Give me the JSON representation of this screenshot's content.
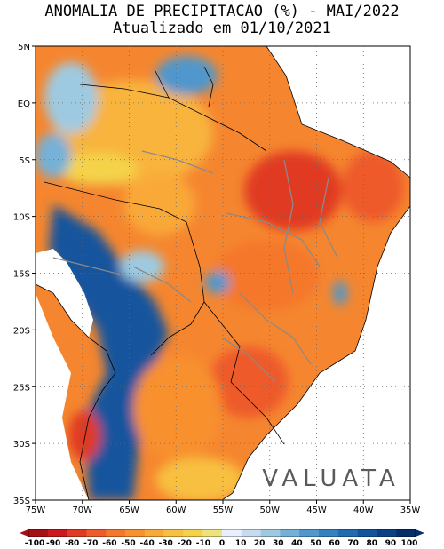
{
  "header": {
    "title": "ANOMALIA DE PRECIPITACAO (%) - MAI/2022",
    "subtitle": "Atualizado em 01/10/2021"
  },
  "map": {
    "lat_labels": [
      "5N",
      "EQ",
      "5S",
      "10S",
      "15S",
      "20S",
      "25S",
      "30S",
      "35S"
    ],
    "lon_labels": [
      "75W",
      "70W",
      "65W",
      "60W",
      "55W",
      "50W",
      "45W",
      "40W",
      "35W"
    ],
    "extent": {
      "lon": [
        -75,
        -35
      ],
      "lat": [
        -35,
        5
      ]
    }
  },
  "watermark": {
    "text": "VALUATA"
  },
  "colorbar": {
    "labels": [
      "-100",
      "-90",
      "-80",
      "-70",
      "-60",
      "-50",
      "-40",
      "-30",
      "-20",
      "-10",
      "0",
      "10",
      "20",
      "30",
      "40",
      "50",
      "60",
      "70",
      "80",
      "90",
      "100"
    ],
    "colors": [
      "#a50f15",
      "#cb181d",
      "#e03a22",
      "#ee5a2a",
      "#f5772b",
      "#f8902f",
      "#f9a938",
      "#f8c040",
      "#f4d34a",
      "#ede37a",
      "#e8f0ff",
      "#c6dbef",
      "#9ecae1",
      "#74b1d8",
      "#4f97cc",
      "#3681c0",
      "#216bb0",
      "#12559d",
      "#0a4185",
      "#062f6a"
    ]
  }
}
